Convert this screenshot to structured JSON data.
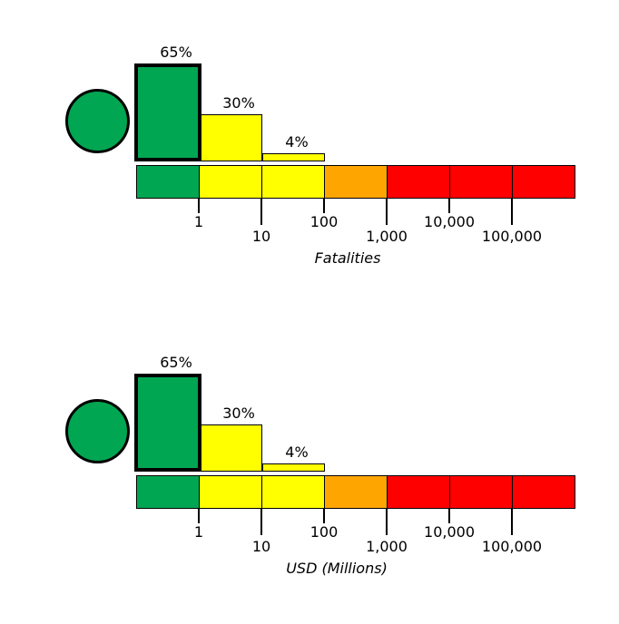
{
  "figure": {
    "background": "#FFFFFF",
    "panel_count": 2
  },
  "colors": {
    "green": "#00A651",
    "yellow": "#FFFF00",
    "orange": "#FFA500",
    "red": "#FF0000",
    "outline": "#000000"
  },
  "chart_data": [
    {
      "type": "bar",
      "subtype": "risk-probability-over-log-severity-scale",
      "xlabel": "Fatalities",
      "x_scale": "log",
      "x_tick_labels": [
        "1",
        "10",
        "100",
        "1,000",
        "10,000",
        "100,000"
      ],
      "indicator": {
        "shape": "circle",
        "color": "green"
      },
      "bars": [
        {
          "label": "65%",
          "value_pct": 65,
          "bin": "below 1",
          "color": "green",
          "emphasized": true
        },
        {
          "label": "30%",
          "value_pct": 30,
          "bin": "1 to 10",
          "color": "yellow",
          "emphasized": false
        },
        {
          "label": "4%",
          "value_pct": 4,
          "bin": "10 to 100",
          "color": "yellow",
          "emphasized": false
        }
      ],
      "scale_segments": [
        {
          "bin": "below 1",
          "color": "green"
        },
        {
          "bin": "1 to 10",
          "color": "yellow"
        },
        {
          "bin": "10 to 100",
          "color": "yellow"
        },
        {
          "bin": "100 to 1,000",
          "color": "orange"
        },
        {
          "bin": "1,000 to 10,000",
          "color": "red"
        },
        {
          "bin": "10,000 to 100,000",
          "color": "red"
        },
        {
          "bin": "above 100,000",
          "color": "red"
        }
      ]
    },
    {
      "type": "bar",
      "subtype": "risk-probability-over-log-severity-scale",
      "xlabel": "USD (Millions)",
      "x_scale": "log",
      "x_tick_labels": [
        "1",
        "10",
        "100",
        "1,000",
        "10,000",
        "100,000"
      ],
      "indicator": {
        "shape": "circle",
        "color": "green"
      },
      "bars": [
        {
          "label": "65%",
          "value_pct": 65,
          "bin": "below 1",
          "color": "green",
          "emphasized": true
        },
        {
          "label": "30%",
          "value_pct": 30,
          "bin": "1 to 10",
          "color": "yellow",
          "emphasized": false
        },
        {
          "label": "4%",
          "value_pct": 4,
          "bin": "10 to 100",
          "color": "yellow",
          "emphasized": false
        }
      ],
      "scale_segments": [
        {
          "bin": "below 1",
          "color": "green"
        },
        {
          "bin": "1 to 10",
          "color": "yellow"
        },
        {
          "bin": "10 to 100",
          "color": "yellow"
        },
        {
          "bin": "100 to 1,000",
          "color": "orange"
        },
        {
          "bin": "1,000 to 10,000",
          "color": "red"
        },
        {
          "bin": "10,000 to 100,000",
          "color": "red"
        },
        {
          "bin": "above 100,000",
          "color": "red"
        }
      ]
    }
  ]
}
